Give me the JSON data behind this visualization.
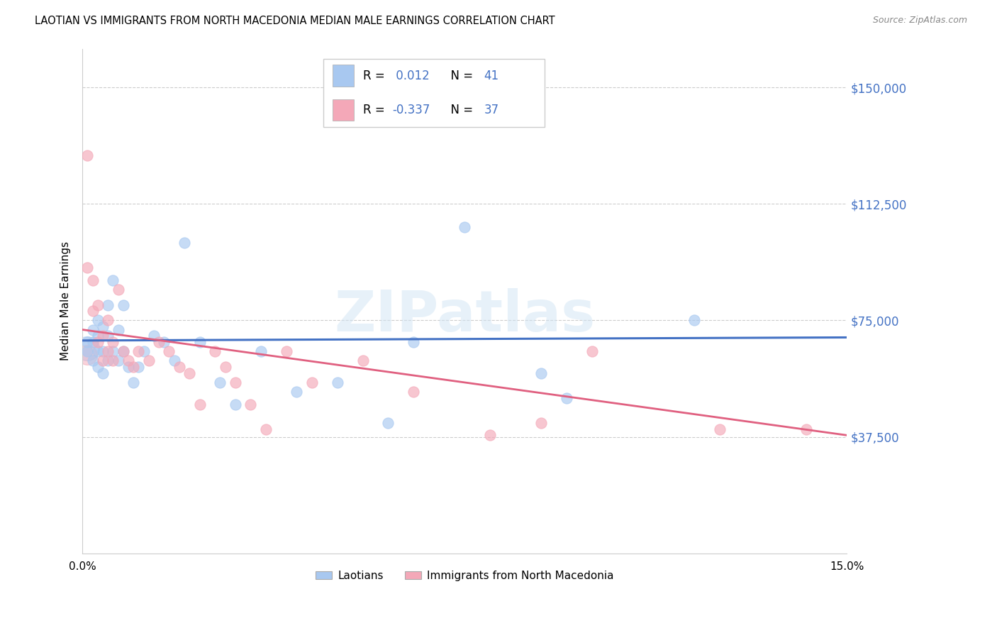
{
  "title": "LAOTIAN VS IMMIGRANTS FROM NORTH MACEDONIA MEDIAN MALE EARNINGS CORRELATION CHART",
  "source": "Source: ZipAtlas.com",
  "ylabel": "Median Male Earnings",
  "xlim": [
    0.0,
    0.15
  ],
  "ylim": [
    0,
    162500
  ],
  "yticks": [
    37500,
    75000,
    112500,
    150000
  ],
  "ytick_labels": [
    "$37,500",
    "$75,000",
    "$112,500",
    "$150,000"
  ],
  "xticks": [
    0.0,
    0.05,
    0.1,
    0.15
  ],
  "xtick_labels": [
    "0.0%",
    "",
    "",
    "15.0%"
  ],
  "legend_label1": "Laotians",
  "legend_label2": "Immigrants from North Macedonia",
  "blue_color": "#A8C8F0",
  "pink_color": "#F4A8B8",
  "blue_line_color": "#4472C4",
  "pink_line_color": "#E06080",
  "blue_text_color": "#4472C4",
  "watermark": "ZIPatlas",
  "blue_scatter_x": [
    0.001,
    0.001,
    0.002,
    0.002,
    0.002,
    0.003,
    0.003,
    0.003,
    0.003,
    0.004,
    0.004,
    0.004,
    0.005,
    0.005,
    0.005,
    0.006,
    0.006,
    0.007,
    0.007,
    0.008,
    0.008,
    0.009,
    0.01,
    0.011,
    0.012,
    0.014,
    0.016,
    0.018,
    0.02,
    0.023,
    0.027,
    0.03,
    0.035,
    0.042,
    0.05,
    0.06,
    0.065,
    0.075,
    0.09,
    0.095,
    0.12
  ],
  "blue_scatter_y": [
    68000,
    65000,
    72000,
    68000,
    62000,
    75000,
    70000,
    65000,
    60000,
    73000,
    65000,
    58000,
    80000,
    70000,
    62000,
    88000,
    65000,
    62000,
    72000,
    80000,
    65000,
    60000,
    55000,
    60000,
    65000,
    70000,
    68000,
    62000,
    100000,
    68000,
    55000,
    48000,
    65000,
    52000,
    55000,
    42000,
    68000,
    105000,
    58000,
    50000,
    75000
  ],
  "pink_scatter_x": [
    0.001,
    0.001,
    0.002,
    0.002,
    0.003,
    0.003,
    0.004,
    0.004,
    0.005,
    0.005,
    0.006,
    0.006,
    0.007,
    0.008,
    0.009,
    0.01,
    0.011,
    0.013,
    0.015,
    0.017,
    0.019,
    0.021,
    0.023,
    0.026,
    0.028,
    0.03,
    0.033,
    0.036,
    0.04,
    0.045,
    0.055,
    0.065,
    0.08,
    0.09,
    0.1,
    0.125,
    0.142
  ],
  "pink_scatter_y": [
    128000,
    92000,
    88000,
    78000,
    80000,
    68000,
    70000,
    62000,
    75000,
    65000,
    68000,
    62000,
    85000,
    65000,
    62000,
    60000,
    65000,
    62000,
    68000,
    65000,
    60000,
    58000,
    48000,
    65000,
    60000,
    55000,
    48000,
    40000,
    65000,
    55000,
    62000,
    52000,
    38000,
    42000,
    65000,
    40000,
    40000
  ],
  "blue_line_y0": 68500,
  "blue_line_y1": 69500,
  "pink_line_y0": 72000,
  "pink_line_y1": 38000
}
